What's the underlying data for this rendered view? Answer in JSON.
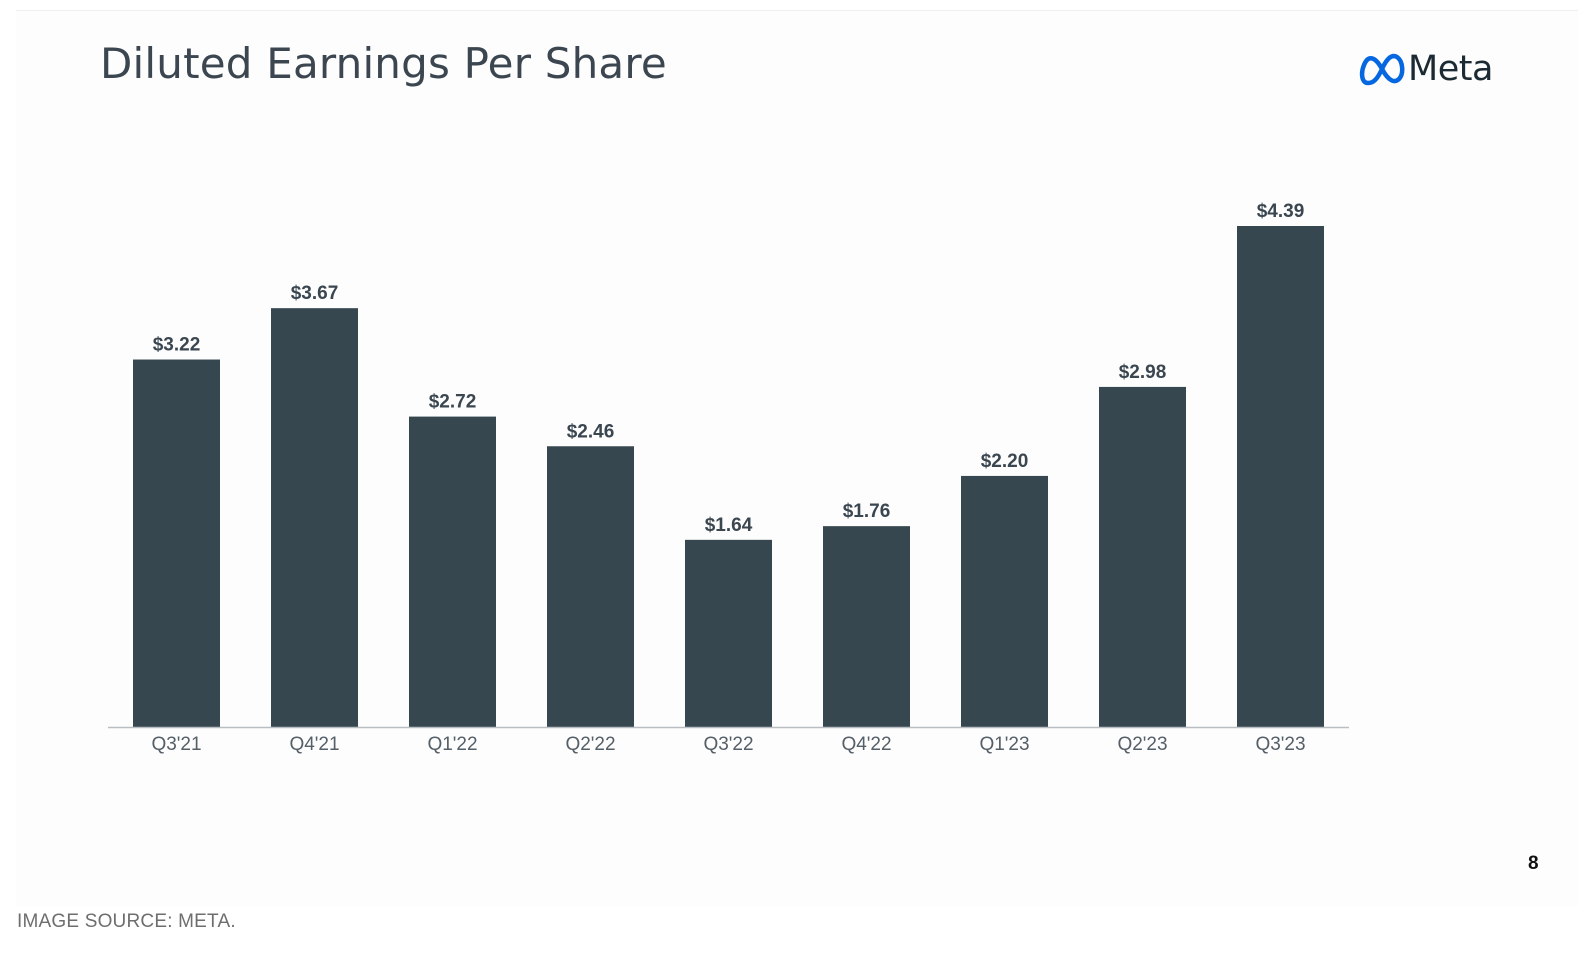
{
  "brand": {
    "name": "Meta",
    "logo_icon": "meta-infinity-logo",
    "logo_color": "#0668E1"
  },
  "page_number": "8",
  "source_caption": "IMAGE SOURCE: META.",
  "chart_data": {
    "type": "bar",
    "title": "Diluted Earnings Per Share",
    "xlabel": "",
    "ylabel": "",
    "ylim": [
      0,
      4.39
    ],
    "grid": false,
    "legend": "none",
    "bar_color": "#37474f",
    "categories": [
      "Q3'21",
      "Q4'21",
      "Q1'22",
      "Q2'22",
      "Q3'22",
      "Q4'22",
      "Q1'23",
      "Q2'23",
      "Q3'23"
    ],
    "values": [
      3.22,
      3.67,
      2.72,
      2.46,
      1.64,
      1.76,
      2.2,
      2.98,
      4.39
    ],
    "value_labels": [
      "$3.22",
      "$3.67",
      "$2.72",
      "$2.46",
      "$1.64",
      "$1.76",
      "$2.20",
      "$2.98",
      "$4.39"
    ]
  }
}
